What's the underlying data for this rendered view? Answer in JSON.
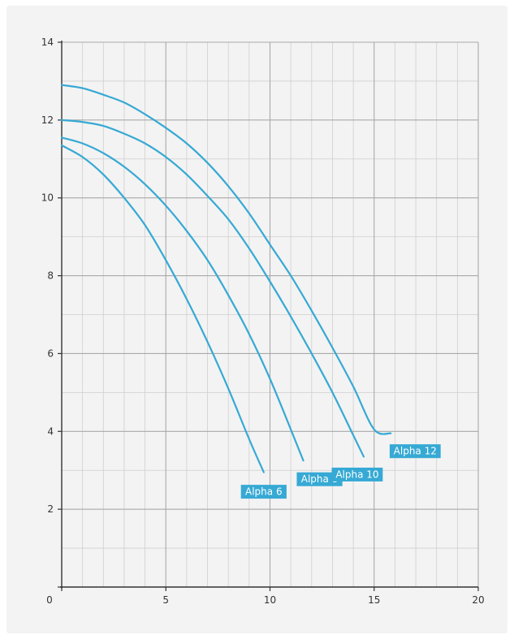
{
  "chart_data": {
    "type": "line",
    "title": "",
    "xlabel": "",
    "ylabel": "",
    "xlim": [
      0,
      20
    ],
    "ylim": [
      0,
      14
    ],
    "x_ticks": [
      "0",
      "5",
      "10",
      "15",
      "20"
    ],
    "y_ticks": [
      "2",
      "4",
      "6",
      "8",
      "10",
      "12",
      "14"
    ],
    "grid": true,
    "line_color": "#36a9d4",
    "label_bg_color": "#36a9d4",
    "series": [
      {
        "name": "Alpha 6",
        "label": "Alpha 6",
        "x": [
          0,
          1,
          2,
          3,
          4,
          5,
          6,
          7,
          8,
          9,
          9.7
        ],
        "y": [
          11.35,
          11.05,
          10.6,
          10.0,
          9.3,
          8.4,
          7.4,
          6.3,
          5.1,
          3.8,
          2.95
        ]
      },
      {
        "name": "Alpha 8",
        "label": "Alpha 8",
        "x": [
          0,
          1,
          2,
          3,
          4,
          5,
          6,
          7,
          8,
          9,
          10,
          11,
          11.6
        ],
        "y": [
          11.55,
          11.4,
          11.15,
          10.8,
          10.35,
          9.8,
          9.15,
          8.4,
          7.5,
          6.5,
          5.35,
          4.05,
          3.25
        ]
      },
      {
        "name": "Alpha 10",
        "label": "Alpha 10",
        "x": [
          0,
          1,
          2,
          3,
          4,
          5,
          6,
          7,
          8,
          9,
          10,
          11,
          12,
          13,
          14,
          14.5
        ],
        "y": [
          12.0,
          11.95,
          11.85,
          11.65,
          11.4,
          11.05,
          10.6,
          10.05,
          9.45,
          8.7,
          7.85,
          6.95,
          6.0,
          5.0,
          3.9,
          3.35
        ]
      },
      {
        "name": "Alpha 12",
        "label": "Alpha 12",
        "x": [
          0,
          1,
          2,
          3,
          4,
          5,
          6,
          7,
          8,
          9,
          10,
          11,
          12,
          13,
          14,
          15,
          15.8
        ],
        "y": [
          12.9,
          12.82,
          12.65,
          12.45,
          12.15,
          11.8,
          11.4,
          10.9,
          10.3,
          9.6,
          8.8,
          8.0,
          7.1,
          6.15,
          5.15,
          4.05,
          3.95
        ]
      }
    ]
  }
}
